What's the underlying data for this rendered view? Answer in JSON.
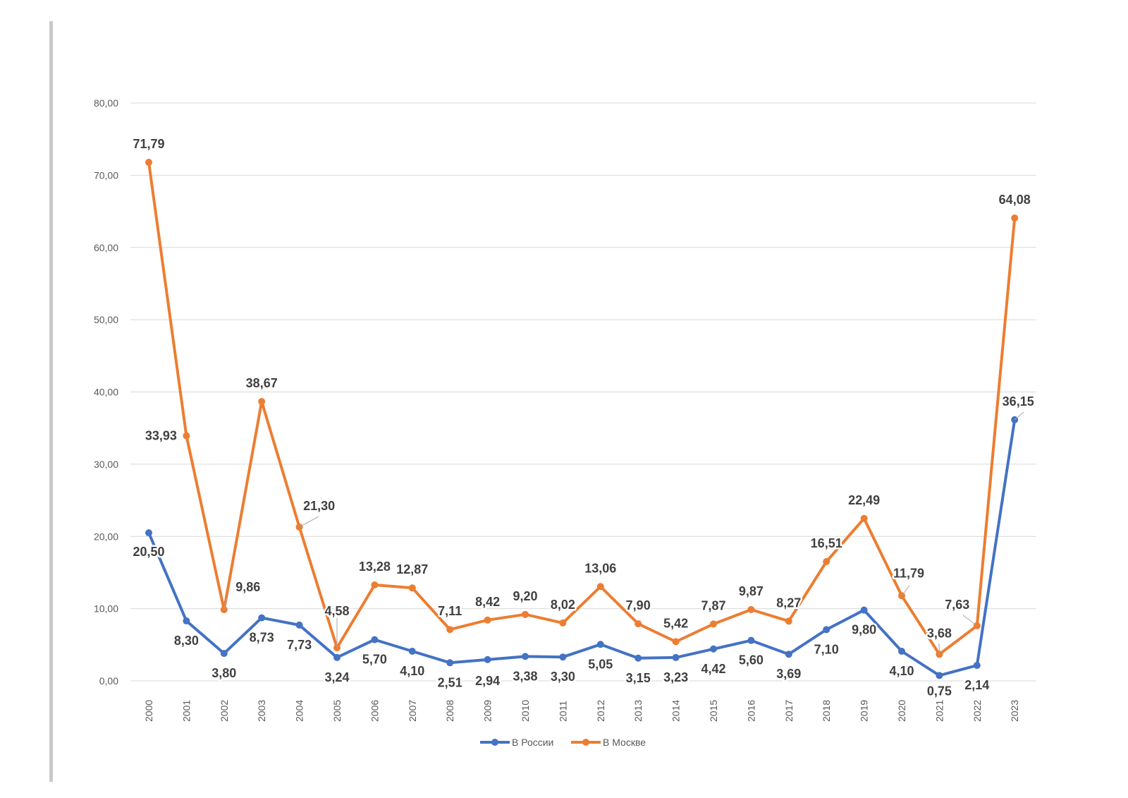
{
  "chart_data": {
    "type": "line",
    "title": "",
    "xlabel": "",
    "ylabel": "",
    "ylim": [
      0,
      80
    ],
    "yticks": [
      "0,00",
      "10,00",
      "20,00",
      "30,00",
      "40,00",
      "50,00",
      "60,00",
      "70,00",
      "80,00"
    ],
    "categories": [
      "2000",
      "2001",
      "2002",
      "2003",
      "2004",
      "2005",
      "2006",
      "2007",
      "2008",
      "2009",
      "2010",
      "2011",
      "2012",
      "2013",
      "2014",
      "2015",
      "2016",
      "2017",
      "2018",
      "2019",
      "2020",
      "2021",
      "2022",
      "2023"
    ],
    "grid": "horizontal",
    "legend_position": "bottom",
    "series": [
      {
        "name": "В России",
        "color": "#4472c4",
        "values": [
          20.5,
          8.3,
          3.8,
          8.73,
          7.73,
          3.24,
          5.7,
          4.1,
          2.51,
          2.94,
          3.38,
          3.3,
          5.05,
          3.15,
          3.23,
          4.42,
          5.6,
          3.69,
          7.1,
          9.8,
          4.1,
          0.75,
          2.14,
          36.15
        ],
        "labels": [
          "20,50",
          "8,30",
          "3,80",
          "8,73",
          "7,73",
          "3,24",
          "5,70",
          "4,10",
          "2,51",
          "2,94",
          "3,38",
          "3,30",
          "5,05",
          "3,15",
          "3,23",
          "4,42",
          "5,60",
          "3,69",
          "7,10",
          "9,80",
          "4,10",
          "0,75",
          "2,14",
          "36,15"
        ]
      },
      {
        "name": "В Москве",
        "color": "#ed7d31",
        "values": [
          71.79,
          33.93,
          9.86,
          38.67,
          21.3,
          4.58,
          13.28,
          12.87,
          7.11,
          8.42,
          9.2,
          8.02,
          13.06,
          7.9,
          5.42,
          7.87,
          9.87,
          8.27,
          16.51,
          22.49,
          11.79,
          3.68,
          7.63,
          64.08
        ],
        "labels": [
          "71,79",
          "33,93",
          "9,86",
          "38,67",
          "21,30",
          "4,58",
          "13,28",
          "12,87",
          "7,11",
          "8,42",
          "9,20",
          "8,02",
          "13,06",
          "7,90",
          "5,42",
          "7,87",
          "9,87",
          "8,27",
          "16,51",
          "22,49",
          "11,79",
          "3,68",
          "7,63",
          "64,08"
        ]
      }
    ]
  }
}
